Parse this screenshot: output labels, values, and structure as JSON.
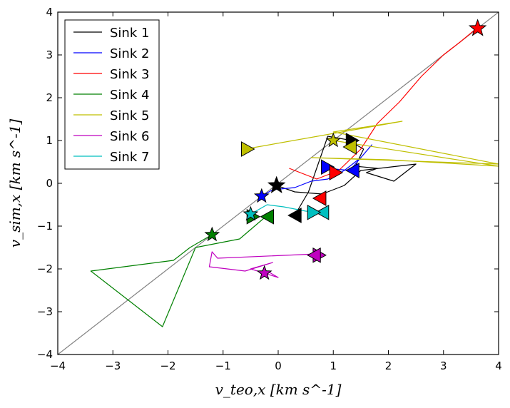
{
  "chart_data": {
    "type": "line",
    "title": "",
    "xlabel": "v_teo,x [km s^-1]",
    "ylabel": "v_sim,x [km s^-1]",
    "xlim": [
      -4,
      4
    ],
    "ylim": [
      -4,
      4
    ],
    "x_ticks": [
      -4,
      -3,
      -2,
      -1,
      0,
      1,
      2,
      3,
      4
    ],
    "y_ticks": [
      -4,
      -3,
      -2,
      -1,
      0,
      1,
      2,
      3,
      4
    ],
    "x_tick_labels": [
      "−4",
      "−3",
      "−2",
      "−1",
      "0",
      "1",
      "2",
      "3",
      "4"
    ],
    "y_tick_labels": [
      "−4",
      "−3",
      "−2",
      "−1",
      "0",
      "1",
      "2",
      "3",
      "4"
    ],
    "legend_position": "top-left",
    "reference_line": {
      "color": "#808080",
      "x": [
        -4,
        4
      ],
      "y": [
        -4,
        4
      ]
    },
    "series": [
      {
        "name": "Sink 1",
        "legend_label": "Sink 1",
        "color": "#000000",
        "x": [
          -0.03,
          0.3,
          0.8,
          1.2,
          1.5,
          2.5,
          2.1,
          1.6,
          1.8,
          1.4,
          1.55,
          1.25,
          0.9,
          0.55,
          0.3
        ],
        "y": [
          -0.05,
          -0.2,
          -0.25,
          -0.05,
          0.3,
          0.45,
          0.05,
          0.25,
          0.35,
          0.4,
          0.8,
          1.02,
          1.1,
          -0.2,
          -0.75
        ],
        "start_marker": {
          "x": 0.3,
          "y": -0.75,
          "dir": "left"
        },
        "end_marker": {
          "x": 1.35,
          "y": 1.0,
          "dir": "right"
        },
        "star": {
          "x": -0.03,
          "y": -0.05
        }
      },
      {
        "name": "Sink 2",
        "legend_label": "Sink 2",
        "color": "#0000ff",
        "x": [
          -0.3,
          -0.1,
          0.3,
          0.6,
          0.9,
          1.2,
          1.5,
          1.7,
          1.3,
          0.9
        ],
        "y": [
          -0.3,
          -0.15,
          -0.1,
          0.05,
          0.1,
          0.3,
          0.6,
          0.9,
          0.3,
          0.35
        ],
        "start_marker": {
          "x": 1.35,
          "y": 0.3,
          "dir": "left"
        },
        "end_marker": {
          "x": 0.9,
          "y": 0.38,
          "dir": "right"
        },
        "star": {
          "x": -0.3,
          "y": -0.3
        }
      },
      {
        "name": "Sink 3",
        "legend_label": "Sink 3",
        "color": "#ff0000",
        "x": [
          0.2,
          0.7,
          1.1,
          1.5,
          1.8,
          2.2,
          2.6,
          3.0,
          3.3,
          3.6
        ],
        "y": [
          0.35,
          0.1,
          0.3,
          0.8,
          1.4,
          1.9,
          2.5,
          3.0,
          3.3,
          3.62
        ],
        "start_marker": {
          "x": 0.75,
          "y": -0.35,
          "dir": "left"
        },
        "end_marker": {
          "x": 1.05,
          "y": 0.25,
          "dir": "right"
        },
        "star": {
          "x": 3.62,
          "y": 3.62
        }
      },
      {
        "name": "Sink 4",
        "legend_label": "Sink 4",
        "color": "#008000",
        "x": [
          -1.2,
          -1.6,
          -1.9,
          -3.4,
          -2.1,
          -1.5,
          -0.7,
          -0.2
        ],
        "y": [
          -1.2,
          -1.5,
          -1.8,
          -2.05,
          -3.35,
          -1.5,
          -1.3,
          -0.75
        ],
        "start_marker": {
          "x": -0.2,
          "y": -0.78,
          "dir": "left"
        },
        "end_marker": {
          "x": -0.45,
          "y": -0.78,
          "dir": "right"
        },
        "star": {
          "x": -1.2,
          "y": -1.2
        }
      },
      {
        "name": "Sink 5",
        "legend_label": "Sink 5",
        "color": "#bfbf00",
        "x": [
          -0.6,
          2.25,
          1.0,
          4.0,
          0.6,
          2.0,
          4.0,
          1.0
        ],
        "y": [
          0.8,
          1.45,
          1.2,
          0.45,
          0.6,
          0.55,
          0.4,
          1.0
        ],
        "start_marker": {
          "x": -0.55,
          "y": 0.8,
          "dir": "right"
        },
        "end_marker": {
          "x": 1.3,
          "y": 0.85,
          "dir": "left"
        },
        "star": {
          "x": 1.0,
          "y": 1.0
        }
      },
      {
        "name": "Sink 6",
        "legend_label": "Sink 6",
        "color": "#bf00bf",
        "x": [
          0.7,
          -1.1,
          -1.2,
          -1.25,
          -0.6,
          -0.1,
          -0.5,
          0.0,
          -0.2
        ],
        "y": [
          -1.65,
          -1.75,
          -1.6,
          -1.95,
          -2.05,
          -1.85,
          -2.0,
          -2.2,
          -2.05
        ],
        "start_marker": {
          "x": 0.75,
          "y": -1.68,
          "dir": "right"
        },
        "end_marker": {
          "x": 0.65,
          "y": -1.68,
          "dir": "left"
        },
        "star": {
          "x": -0.25,
          "y": -2.1
        }
      },
      {
        "name": "Sink 7",
        "legend_label": "Sink 7",
        "color": "#00bfbf",
        "x": [
          -0.5,
          -0.2,
          0.1,
          0.5,
          0.8
        ],
        "y": [
          -0.72,
          -0.5,
          -0.55,
          -0.65,
          -0.68
        ],
        "start_marker": {
          "x": 0.8,
          "y": -0.68,
          "dir": "left"
        },
        "end_marker": {
          "x": 0.65,
          "y": -0.68,
          "dir": "right"
        },
        "star": {
          "x": -0.5,
          "y": -0.72
        }
      }
    ]
  }
}
